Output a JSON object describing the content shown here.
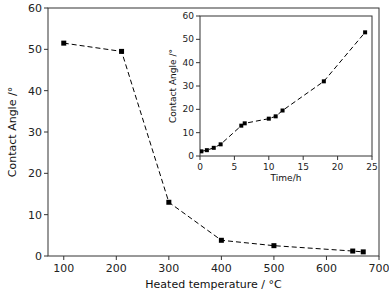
{
  "chart_data": [
    {
      "type": "line",
      "x": [
        100,
        210,
        300,
        400,
        500,
        650,
        670
      ],
      "values": [
        51.5,
        49.5,
        13,
        3.8,
        2.5,
        1.2,
        1.0
      ],
      "x_label": "Heated temperature / °C",
      "y_label": "Contact Angle /°",
      "xlim": [
        70,
        700
      ],
      "ylim": [
        0,
        60
      ],
      "xticks": [
        100,
        200,
        300,
        400,
        500,
        600,
        700
      ],
      "yticks": [
        0,
        10,
        20,
        30,
        40,
        50,
        60
      ],
      "color": "black",
      "marker": "square",
      "line_style": "dashed"
    },
    {
      "type": "line",
      "x": [
        0.2,
        1,
        2,
        3,
        6,
        6.5,
        10,
        11,
        12,
        18,
        24
      ],
      "values": [
        2,
        2.5,
        3.5,
        5,
        13,
        14,
        16,
        17,
        19.5,
        32,
        53
      ],
      "x_label": "Time/h",
      "y_label": "Contact Angle /°",
      "xlim": [
        0,
        25
      ],
      "ylim": [
        0,
        60
      ],
      "xticks": [
        0,
        5,
        10,
        15,
        20,
        25
      ],
      "yticks": [
        0,
        10,
        20,
        30,
        40,
        50,
        60
      ],
      "color": "black",
      "marker": "square",
      "line_style": "dashed"
    }
  ]
}
